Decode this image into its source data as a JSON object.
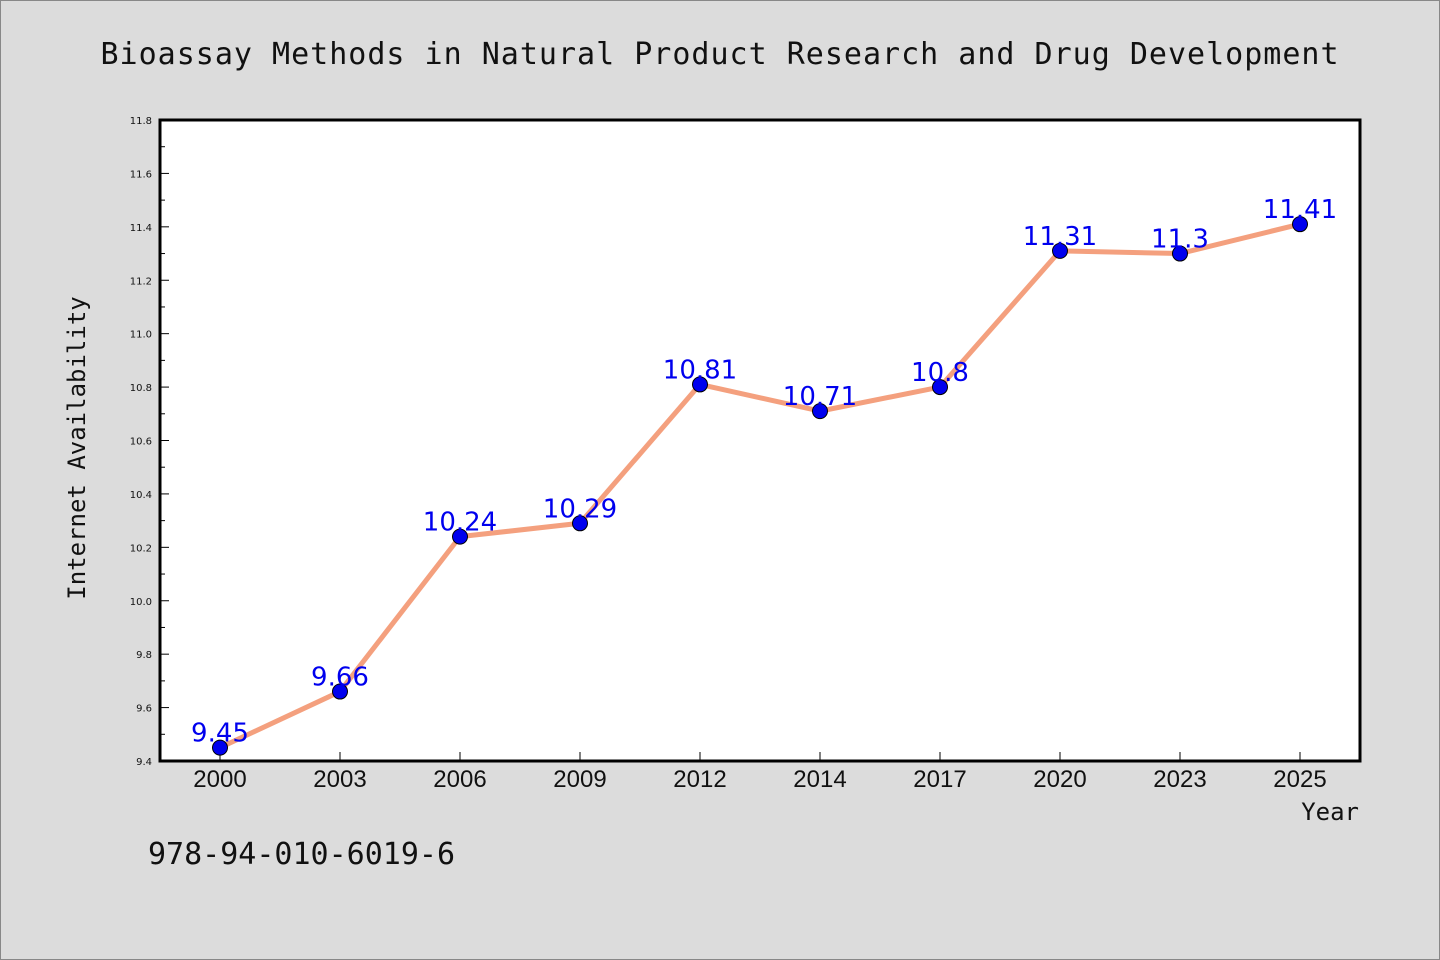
{
  "chart_data": {
    "type": "line",
    "title": "Bioassay Methods in Natural Product Research and Drug Development",
    "xlabel": "Year",
    "ylabel": "Internet Availability",
    "categories": [
      "2000",
      "2003",
      "2006",
      "2009",
      "2012",
      "2014",
      "2017",
      "2020",
      "2023",
      "2025"
    ],
    "series": [
      {
        "values": [
          9.45,
          9.66,
          10.24,
          10.29,
          10.81,
          10.71,
          10.8,
          11.31,
          11.3,
          11.41
        ],
        "data_labels": [
          "9.45",
          "9.66",
          "10.24",
          "10.29",
          "10.81",
          "10.71",
          "10.8",
          "11.31",
          "11.3",
          "11.41"
        ]
      }
    ],
    "ylim": [
      9.4,
      11.8
    ],
    "yticks": [
      "9.4",
      "9.6",
      "9.8",
      "10.0",
      "10.2",
      "10.4",
      "10.6",
      "10.8",
      "11.0",
      "11.2",
      "11.4",
      "11.6",
      "11.8"
    ],
    "grid": false,
    "legend": "none"
  },
  "footer": {
    "isbn": "978-94-010-6019-6"
  },
  "colors": {
    "line": "#f4a07e",
    "marker": "#0000ee",
    "label": "#0000ee",
    "background": "#dcdcdc",
    "plot_background": "#ffffff"
  }
}
